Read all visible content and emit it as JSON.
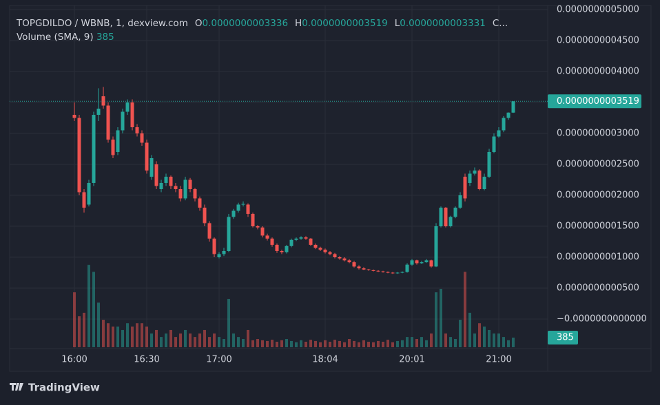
{
  "chart_data": {
    "type": "candlestick",
    "symbol": "TOPGDILDO / WBNB, 1, dexview.com",
    "ohlc_legend": [
      {
        "key": "O",
        "value": "0.0000000003336"
      },
      {
        "key": "H",
        "value": "0.0000000003519"
      },
      {
        "key": "L",
        "value": "0.0000000003331"
      },
      {
        "key": "C...",
        "value": null
      }
    ],
    "volume_title": "Volume (SMA, 9)",
    "last_price_label": "0.0000000003519",
    "brand": "TradingView",
    "up_color": "#26a69a",
    "down_color": "#ef5350",
    "grid": true,
    "ylim": [
      -4.78e-11,
      5.067e-10
    ],
    "yticks": [
      {
        "value": 5e-10,
        "label": "0.0000000005000"
      },
      {
        "value": 4.5e-10,
        "label": "0.0000000004500"
      },
      {
        "value": 4e-10,
        "label": "0.0000000004000"
      },
      {
        "value": 3.5e-10,
        "label": "0.0000000003500"
      },
      {
        "value": 3e-10,
        "label": "0.0000000003000"
      },
      {
        "value": 2.5e-10,
        "label": "0.0000000002500"
      },
      {
        "value": 2e-10,
        "label": "0.0000000002000"
      },
      {
        "value": 1.5e-10,
        "label": "0.0000000001500"
      },
      {
        "value": 1e-10,
        "label": "0.0000000001000"
      },
      {
        "value": 5e-11,
        "label": "0.0000000000500"
      },
      {
        "value": 0,
        "label": "−0.0000000000000"
      }
    ],
    "xticks": [
      {
        "value": 0,
        "label": "16:00"
      },
      {
        "value": 15,
        "label": "16:30"
      },
      {
        "value": 30,
        "label": "17:00"
      },
      {
        "value": 52,
        "label": "18:04"
      },
      {
        "value": 70,
        "label": "20:01"
      },
      {
        "value": 88,
        "label": "21:00"
      }
    ],
    "volume_lim": [
      0,
      3800
    ],
    "open": [
      3.3e-10,
      3.25e-10,
      2.05e-10,
      1.85e-10,
      2.2e-10,
      3.3e-10,
      3.6e-10,
      3.45e-10,
      2.9e-10,
      2.7e-10,
      3.05e-10,
      3.35e-10,
      3.5e-10,
      3.1e-10,
      3e-10,
      2.85e-10,
      2.3e-10,
      2.5e-10,
      2.1e-10,
      2.2e-10,
      2.3e-10,
      2.15e-10,
      2.1e-10,
      1.95e-10,
      2.25e-10,
      2.1e-10,
      1.95e-10,
      1.8e-10,
      1.55e-10,
      1.3e-10,
      1e-10,
      1.05e-10,
      1.1e-10,
      1.65e-10,
      1.75e-10,
      1.85e-10,
      1.85e-10,
      1.7e-10,
      1.5e-10,
      1.48e-10,
      1.35e-10,
      1.3e-10,
      1.2e-10,
      1.1e-10,
      1.08e-10,
      1.18e-10,
      1.28e-10,
      1.3e-10,
      1.32e-10,
      1.3e-10,
      1.2e-10,
      1.15e-10,
      1.12e-10,
      1.08e-10,
      1.05e-10,
      1e-10,
      9.8e-11,
      9.5e-11,
      9.2e-11,
      8.5e-11,
      8.2e-11,
      8e-11,
      7.9e-11,
      7.8e-11,
      7.7e-11,
      7.6e-11,
      7.5e-11,
      7.4e-11,
      7.5e-11,
      7.6e-11,
      8.8e-11,
      9.5e-11,
      9e-11,
      9.2e-11,
      9.5e-11,
      8.5e-11,
      1.5e-10,
      1.8e-10,
      1.5e-10,
      1.65e-10,
      1.8e-10,
      2.3e-10,
      2.2e-10,
      2.35e-10,
      2.4e-10,
      2.1e-10,
      2.3e-10,
      2.7e-10,
      2.95e-10,
      3.05e-10,
      3.25e-10,
      3.336e-10
    ],
    "high": [
      3.5e-10,
      3.3e-10,
      2.1e-10,
      2.25e-10,
      3.35e-10,
      3.73e-10,
      3.75e-10,
      3.5e-10,
      2.95e-10,
      3.1e-10,
      3.4e-10,
      3.55e-10,
      3.55e-10,
      3.15e-10,
      3.05e-10,
      2.9e-10,
      2.65e-10,
      2.55e-10,
      2.25e-10,
      2.35e-10,
      2.32e-10,
      2.2e-10,
      2.15e-10,
      2.3e-10,
      2.28e-10,
      2.12e-10,
      1.98e-10,
      1.85e-10,
      1.58e-10,
      1.32e-10,
      1.08e-10,
      1.15e-10,
      1.7e-10,
      1.78e-10,
      1.88e-10,
      1.9e-10,
      1.87e-10,
      1.72e-10,
      1.52e-10,
      1.5e-10,
      1.38e-10,
      1.32e-10,
      1.22e-10,
      1.12e-10,
      1.2e-10,
      1.3e-10,
      1.32e-10,
      1.34e-10,
      1.34e-10,
      1.31e-10,
      1.22e-10,
      1.17e-10,
      1.14e-10,
      1.1e-10,
      1.07e-10,
      1.02e-10,
      1e-10,
      9.7e-11,
      9.4e-11,
      8.7e-11,
      8.4e-11,
      8.1e-11,
      8e-11,
      7.9e-11,
      7.8e-11,
      7.7e-11,
      7.6e-11,
      7.6e-11,
      7.7e-11,
      9e-11,
      9.7e-11,
      9.6e-11,
      9.4e-11,
      9.7e-11,
      9.6e-11,
      1.55e-10,
      1.82e-10,
      1.81e-10,
      1.67e-10,
      1.82e-10,
      2.05e-10,
      2.35e-10,
      2.4e-10,
      2.45e-10,
      2.42e-10,
      2.35e-10,
      2.75e-10,
      3e-10,
      3.1e-10,
      3.28e-10,
      3.34e-10,
      3.519e-10
    ],
    "low": [
      3.2e-10,
      2e-10,
      1.72e-10,
      1.82e-10,
      2.15e-10,
      3.2e-10,
      3.4e-10,
      2.85e-10,
      2.6e-10,
      2.65e-10,
      3e-10,
      3.3e-10,
      3.05e-10,
      2.95e-10,
      2.8e-10,
      2.35e-10,
      2.25e-10,
      2.1e-10,
      2.05e-10,
      2.15e-10,
      2.1e-10,
      2.05e-10,
      1.9e-10,
      1.92e-10,
      2.05e-10,
      1.9e-10,
      1.75e-10,
      1.5e-10,
      1.25e-10,
      1e-10,
      9.8e-11,
      1.02e-10,
      1.08e-10,
      1.62e-10,
      1.72e-10,
      1.82e-10,
      1.65e-10,
      1.48e-10,
      1.45e-10,
      1.32e-10,
      1.27e-10,
      1.17e-10,
      1.07e-10,
      1.05e-10,
      1.06e-10,
      1.16e-10,
      1.26e-10,
      1.28e-10,
      1.28e-10,
      1.18e-10,
      1.13e-10,
      1.1e-10,
      1.06e-10,
      1.03e-10,
      9.8e-11,
      9.6e-11,
      9.3e-11,
      9e-11,
      8.3e-11,
      8e-11,
      7.9e-11,
      7.8e-11,
      7.7e-11,
      7.6e-11,
      7.5e-11,
      7.4e-11,
      7.3e-11,
      7.3e-11,
      7.4e-11,
      7.5e-11,
      8.6e-11,
      8.8e-11,
      8.9e-11,
      9.1e-11,
      8.3e-11,
      8.4e-11,
      1.48e-10,
      1.48e-10,
      1.48e-10,
      1.63e-10,
      1.78e-10,
      1.9e-10,
      2.15e-10,
      2.32e-10,
      2.08e-10,
      2.08e-10,
      2.28e-10,
      2.68e-10,
      2.93e-10,
      3.02e-10,
      3.22e-10,
      3.331e-10
    ],
    "close": [
      3.25e-10,
      2.05e-10,
      1.8e-10,
      2.2e-10,
      3.3e-10,
      3.4e-10,
      3.45e-10,
      2.9e-10,
      2.65e-10,
      3.05e-10,
      3.35e-10,
      3.5e-10,
      3.1e-10,
      3e-10,
      2.85e-10,
      2.4e-10,
      2.6e-10,
      2.15e-10,
      2.2e-10,
      2.3e-10,
      2.15e-10,
      2.1e-10,
      1.95e-10,
      2.25e-10,
      2.1e-10,
      1.95e-10,
      1.8e-10,
      1.55e-10,
      1.3e-10,
      1.05e-10,
      1.05e-10,
      1.1e-10,
      1.65e-10,
      1.75e-10,
      1.85e-10,
      1.86e-10,
      1.7e-10,
      1.5e-10,
      1.48e-10,
      1.35e-10,
      1.3e-10,
      1.2e-10,
      1.1e-10,
      1.08e-10,
      1.18e-10,
      1.28e-10,
      1.3e-10,
      1.32e-10,
      1.3e-10,
      1.2e-10,
      1.15e-10,
      1.12e-10,
      1.08e-10,
      1.05e-10,
      1e-10,
      9.8e-11,
      9.5e-11,
      9.2e-11,
      8.5e-11,
      8.2e-11,
      8e-11,
      7.9e-11,
      7.8e-11,
      7.7e-11,
      7.6e-11,
      7.5e-11,
      7.4e-11,
      7.5e-11,
      7.6e-11,
      8.8e-11,
      9.5e-11,
      9e-11,
      9.2e-11,
      9.5e-11,
      8.5e-11,
      1.5e-10,
      1.8e-10,
      1.5e-10,
      1.65e-10,
      1.8e-10,
      2e-10,
      1.95e-10,
      2.35e-10,
      2.4e-10,
      2.1e-10,
      2.3e-10,
      2.7e-10,
      2.95e-10,
      3.05e-10,
      3.25e-10,
      3.336e-10,
      3.519e-10
    ],
    "volume": [
      2200,
      1240,
      1380,
      3300,
      3020,
      1790,
      1100,
      960,
      830,
      830,
      690,
      960,
      830,
      960,
      960,
      830,
      550,
      690,
      410,
      550,
      690,
      410,
      550,
      690,
      550,
      410,
      550,
      690,
      410,
      550,
      410,
      330,
      1930,
      550,
      410,
      330,
      690,
      280,
      330,
      280,
      250,
      300,
      220,
      280,
      330,
      250,
      200,
      280,
      220,
      300,
      250,
      200,
      280,
      220,
      300,
      250,
      200,
      330,
      250,
      200,
      280,
      220,
      200,
      250,
      220,
      300,
      200,
      250,
      280,
      410,
      410,
      330,
      410,
      280,
      550,
      2200,
      2340,
      550,
      410,
      330,
      1100,
      3020,
      1380,
      550,
      960,
      830,
      690,
      550,
      550,
      410,
      280,
      385
    ]
  }
}
